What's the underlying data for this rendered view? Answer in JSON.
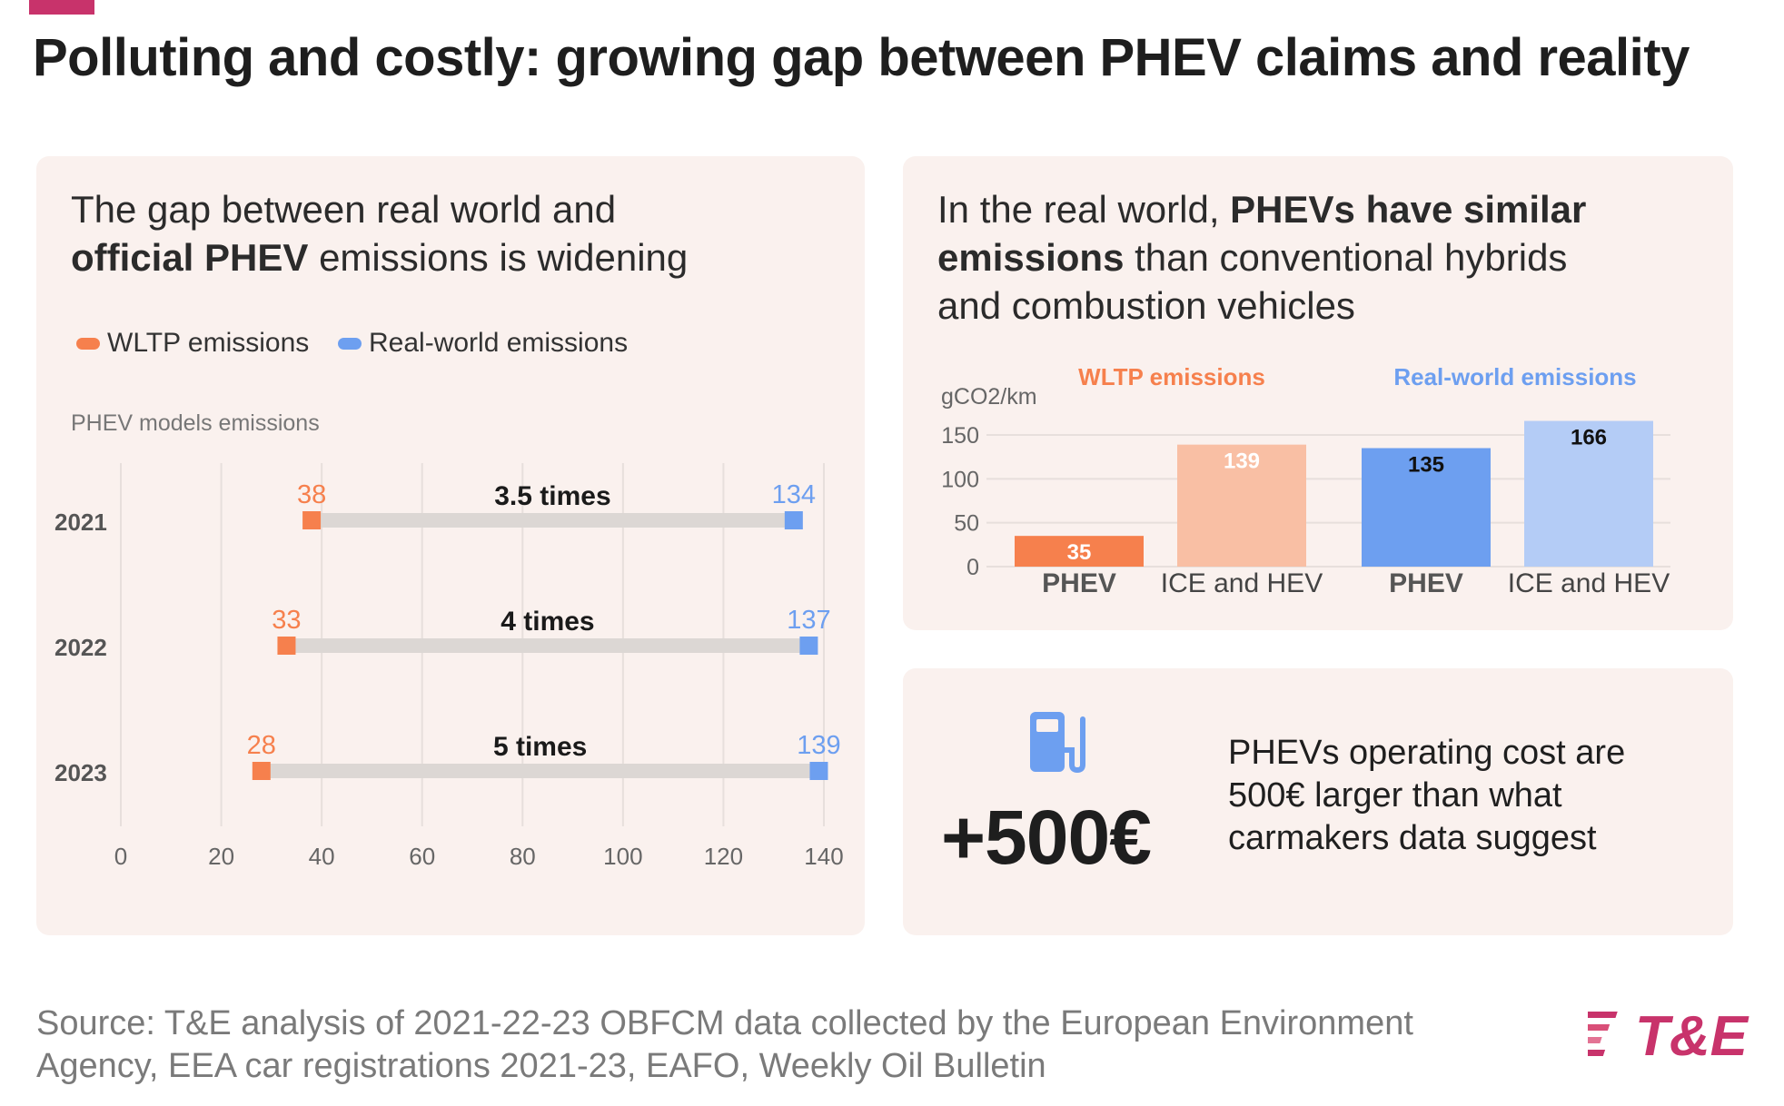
{
  "title": "Polluting and costly: growing gap between PHEV claims and reality",
  "colors": {
    "accent": "#c8336b",
    "wltp": "#f6804d",
    "real": "#6d9ff0",
    "wltp_light": "#f9bfa4",
    "real_light": "#b4ccf6",
    "panel": "#faf1ee"
  },
  "left_panel": {
    "title_plain_1": "The gap between real world and",
    "title_bold": "official PHEV",
    "title_plain_2": " emissions is widening",
    "legend": {
      "wltp": "WLTP emissions",
      "real": "Real-world emissions"
    },
    "subtitle": "PHEV models emissions"
  },
  "right_top": {
    "title_plain_1": "In the real world, ",
    "title_bold_1": "PHEVs have similar",
    "title_bold_2": "emissions",
    "title_plain_2": " than conventional hybrids",
    "title_plain_3": "and combustion vehicles"
  },
  "right_bottom": {
    "icon": "fuel-pump-icon",
    "big_number": "+500€",
    "line1": "PHEVs operating cost are",
    "line2": "500€ larger than what",
    "line3": "carmakers data suggest"
  },
  "source": {
    "line1": "Source: T&E analysis of 2021-22-23 OBFCM data collected by the European Environment",
    "line2": "Agency, EEA car registrations 2021-23, EAFO, Weekly Oil Bulletin"
  },
  "logo": {
    "text": "T&E",
    "icon": "te-logo-icon"
  },
  "chart_data": [
    {
      "type": "scatter",
      "subtitle": "PHEV models emissions",
      "categories": [
        "2021",
        "2022",
        "2023"
      ],
      "series": [
        {
          "name": "WLTP emissions",
          "values": [
            38,
            33,
            28
          ]
        },
        {
          "name": "Real-world emissions",
          "values": [
            134,
            137,
            139
          ]
        }
      ],
      "annotations": [
        "3.5 times",
        "4 times",
        "5 times"
      ],
      "x_ticks": [
        0,
        20,
        40,
        60,
        80,
        100,
        120,
        140
      ],
      "xlim": [
        0,
        140
      ],
      "grid": true,
      "legend": "top-left"
    },
    {
      "type": "bar",
      "ylabel": "gCO2/km",
      "y_ticks": [
        0,
        50,
        100,
        150
      ],
      "ylim": [
        0,
        150
      ],
      "categories": [
        "PHEV",
        "ICE and HEV"
      ],
      "series": [
        {
          "name": "WLTP emissions",
          "values": [
            35,
            139
          ]
        },
        {
          "name": "Real-world emissions",
          "values": [
            135,
            166
          ]
        }
      ],
      "grid": true
    }
  ]
}
